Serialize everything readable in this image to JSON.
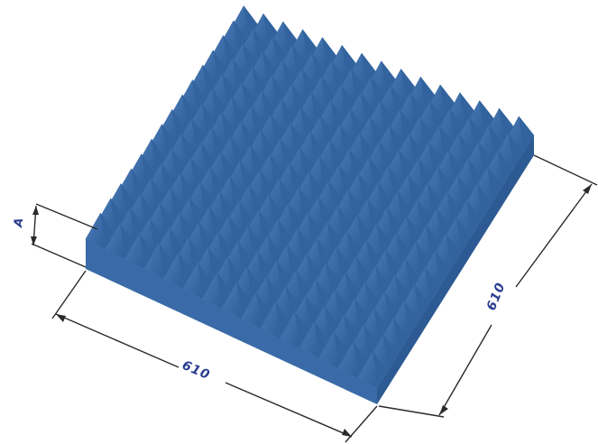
{
  "dimensions": {
    "width_label": "610",
    "depth_label": "610",
    "height_label": "A"
  },
  "panel": {
    "rows": 15,
    "cols": 15
  },
  "colors": {
    "panel_top": "#4a7cb8",
    "panel_light": "#8fb5de",
    "panel_dark": "#2f5f99",
    "panel_front": "#3a6ba8",
    "panel_side": "#2d5a92",
    "dimension_line": "#2a2a2a",
    "dimension_text": "#2b3d8f"
  }
}
